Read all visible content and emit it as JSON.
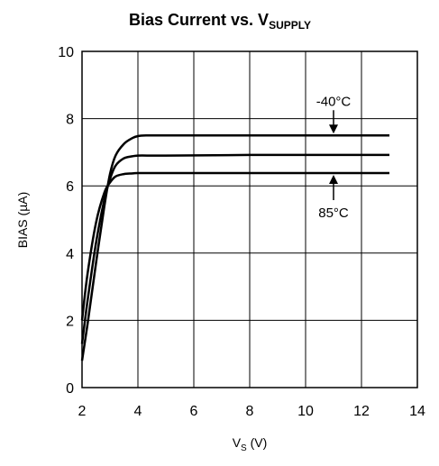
{
  "chart_data": {
    "type": "line",
    "title_main": "Bias Current vs. V",
    "title_sub": "SUPPLY",
    "xlabel_main": "V",
    "xlabel_sub": "S",
    "xlabel_unit": " (V)",
    "ylabel": "BIAS (µA)",
    "xlim": [
      2,
      14
    ],
    "ylim": [
      0,
      10
    ],
    "xticks": [
      "2",
      "4",
      "6",
      "8",
      "10",
      "12",
      "14"
    ],
    "yticks": [
      "0",
      "2",
      "4",
      "6",
      "8",
      "10"
    ],
    "grid": true,
    "line_color": "#000000",
    "series": [
      {
        "x": [
          2.0,
          2.2,
          2.5,
          2.8,
          3.0,
          3.2,
          3.5,
          3.8,
          4.0,
          4.3,
          4.6,
          5.0,
          8.0,
          13.0
        ],
        "y": [
          0.8,
          1.9,
          3.7,
          5.4,
          6.35,
          6.9,
          7.25,
          7.42,
          7.48,
          7.5,
          7.5,
          7.5,
          7.5,
          7.5
        ]
      },
      {
        "x": [
          2.0,
          2.2,
          2.5,
          2.8,
          3.0,
          3.2,
          3.5,
          3.8,
          4.0,
          4.5,
          5.0,
          8.0,
          13.0
        ],
        "y": [
          1.3,
          2.6,
          4.3,
          5.6,
          6.2,
          6.6,
          6.82,
          6.88,
          6.9,
          6.9,
          6.9,
          6.92,
          6.92
        ]
      },
      {
        "x": [
          2.0,
          2.2,
          2.5,
          2.8,
          3.0,
          3.2,
          3.5,
          3.8,
          4.0,
          5.0,
          8.0,
          13.0
        ],
        "y": [
          2.0,
          3.4,
          4.9,
          5.8,
          6.1,
          6.28,
          6.35,
          6.37,
          6.38,
          6.38,
          6.38,
          6.38
        ]
      }
    ],
    "annotations": [
      {
        "text": "-40°C",
        "x": 11.0,
        "y": 7.5
      },
      {
        "text": "85°C",
        "x": 11.0,
        "y": 6.38
      }
    ]
  }
}
